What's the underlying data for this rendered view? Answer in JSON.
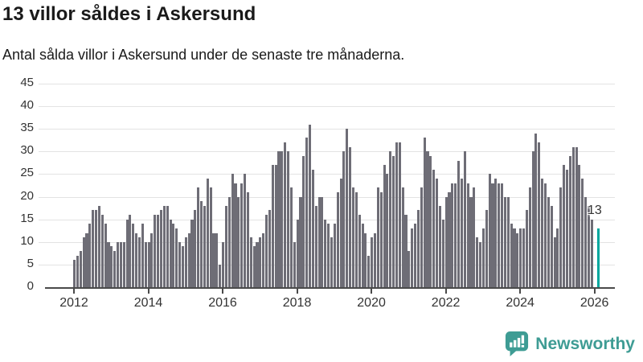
{
  "header": {
    "title": "13 villor såldes i Askersund",
    "subtitle": "Antal sålda villor i Askersund under de senaste tre månaderna."
  },
  "footer": {
    "brand": "Newsworthy",
    "logo_icon": "bar-chart-speech-bubble-icon"
  },
  "colors": {
    "bar": "#6e6d76",
    "highlight": "#00a79e",
    "brand_teal": "#3e9c94",
    "grid": "#e3e3e3",
    "axis": "#4a4a4a",
    "text": "#1a1a1a",
    "tick_text": "#333333"
  },
  "chart_data": {
    "type": "bar",
    "title": "13 villor såldes i Askersund",
    "subtitle": "Antal sålda villor i Askersund under de senaste tre månaderna.",
    "xlabel": "",
    "ylabel": "",
    "ylim": [
      0,
      45
    ],
    "grid": "horizontal",
    "legend": "none",
    "start_year": 2012,
    "x_tick_labels": [
      "2012",
      "2014",
      "2016",
      "2018",
      "2020",
      "2022",
      "2024",
      "2026"
    ],
    "y_ticks": [
      0,
      5,
      10,
      15,
      20,
      25,
      30,
      35,
      40,
      45
    ],
    "monthly_values": [
      6,
      7,
      8,
      11,
      12,
      14,
      17,
      17,
      18,
      16,
      14,
      10,
      9,
      8,
      10,
      10,
      10,
      15,
      16,
      14,
      12,
      11,
      14,
      10,
      10,
      12,
      16,
      16,
      17,
      18,
      18,
      15,
      14,
      13,
      10,
      9,
      11,
      12,
      15,
      17,
      22,
      19,
      18,
      24,
      22,
      12,
      12,
      5,
      10,
      18,
      20,
      25,
      23,
      20,
      23,
      25,
      21,
      11,
      9,
      10,
      11,
      12,
      16,
      17,
      27,
      27,
      30,
      30,
      32,
      30,
      22,
      10,
      15,
      20,
      29,
      33,
      36,
      26,
      18,
      20,
      20,
      15,
      14,
      11,
      14,
      21,
      24,
      30,
      35,
      31,
      22,
      21,
      16,
      14,
      12,
      7,
      11,
      12,
      22,
      21,
      27,
      25,
      30,
      29,
      32,
      32,
      22,
      16,
      8,
      13,
      14,
      17,
      22,
      33,
      30,
      29,
      26,
      24,
      18,
      15,
      20,
      21,
      23,
      23,
      28,
      24,
      30,
      23,
      20,
      22,
      11,
      10,
      13,
      17,
      25,
      23,
      24,
      23,
      23,
      20,
      20,
      14,
      13,
      12,
      13,
      13,
      17,
      22,
      30,
      34,
      32,
      24,
      23,
      20,
      18,
      11,
      13,
      22,
      27,
      26,
      29,
      31,
      31,
      27,
      24,
      20,
      18,
      15
    ],
    "highlight": {
      "value": 13,
      "label": "13",
      "gap_before": 1
    }
  }
}
